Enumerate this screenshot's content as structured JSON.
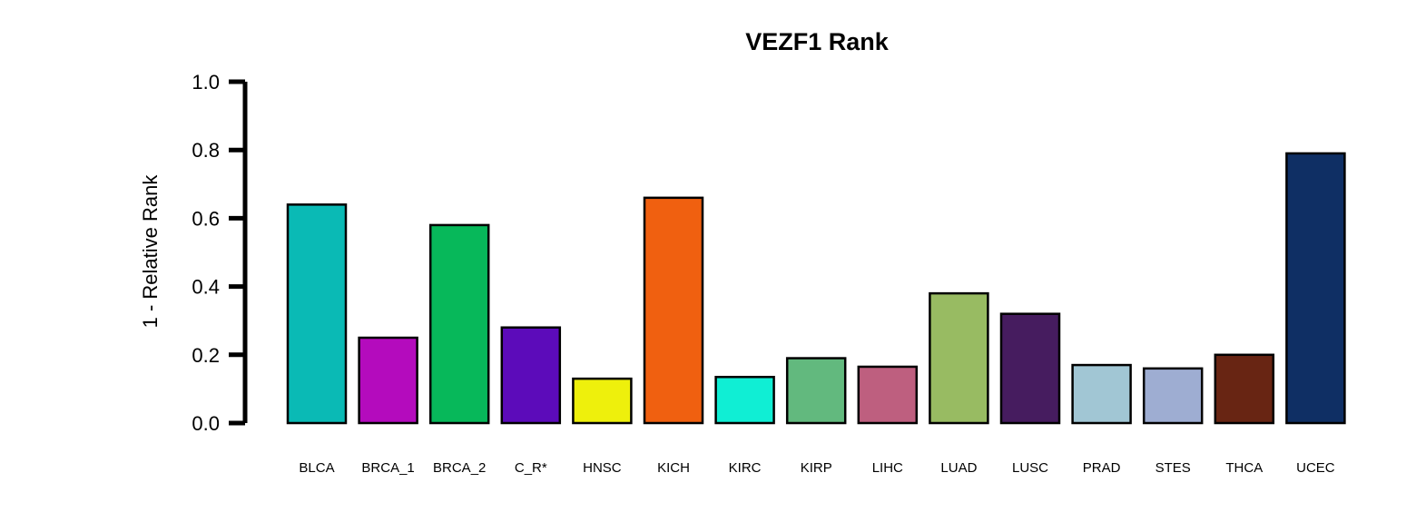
{
  "chart_data": {
    "type": "bar",
    "title": "VEZF1 Rank",
    "xlabel": "",
    "ylabel": "1 - Relative Rank",
    "ylim": [
      0,
      1
    ],
    "yticks": [
      "0.0",
      "0.2",
      "0.4",
      "0.6",
      "0.8",
      "1.0"
    ],
    "grid": false,
    "categories": [
      "BLCA",
      "BRCA_1",
      "BRCA_2",
      "C_R*",
      "HNSC",
      "KICH",
      "KIRC",
      "KIRP",
      "LIHC",
      "LUAD",
      "LUSC",
      "PRAD",
      "STES",
      "THCA",
      "UCEC"
    ],
    "values": [
      0.64,
      0.25,
      0.58,
      0.28,
      0.13,
      0.66,
      0.135,
      0.19,
      0.165,
      0.38,
      0.32,
      0.17,
      0.16,
      0.2,
      0.79
    ],
    "colors": [
      "#0abab5",
      "#b40bbd",
      "#07b85a",
      "#5c0bba",
      "#eef00c",
      "#f06010",
      "#10eed4",
      "#62b97e",
      "#be5f7f",
      "#98bb62",
      "#461c5f",
      "#a1c6d4",
      "#9eadd2",
      "#682513",
      "#0f2f64"
    ]
  }
}
